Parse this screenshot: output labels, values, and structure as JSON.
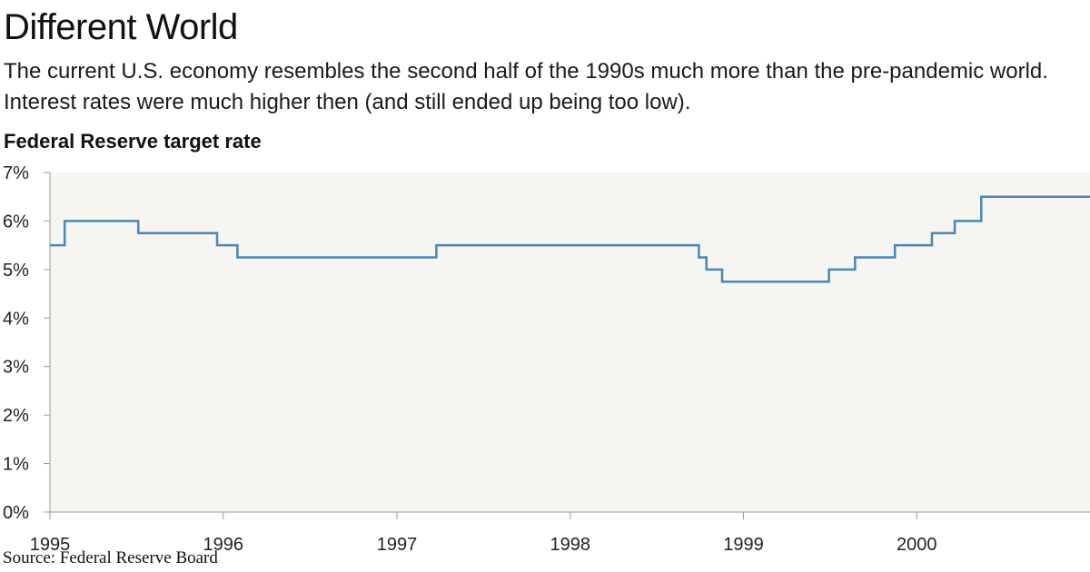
{
  "header": {
    "title": "Different World",
    "subtitle": "The current U.S. economy resembles the second half of the 1990s much more than the pre-pandemic world. Interest rates were much higher then (and still ended up being too low)."
  },
  "footer": {
    "source": "Source: Federal Reserve Board"
  },
  "colors": {
    "line": "#4a86b8",
    "plot_background": "#f6f5f1",
    "axis": "#9a9a9a"
  },
  "chart_data": {
    "type": "line",
    "step": true,
    "ylabel": "Federal Reserve target rate",
    "xlim": [
      "1995-01-01",
      "2000-12-31"
    ],
    "ylim": [
      0,
      7
    ],
    "x_ticks": [
      {
        "date": "1995-01-01",
        "label": "1995"
      },
      {
        "date": "1996-01-01",
        "label": "1996"
      },
      {
        "date": "1997-01-01",
        "label": "1997"
      },
      {
        "date": "1998-01-01",
        "label": "1998"
      },
      {
        "date": "1999-01-01",
        "label": "1999"
      },
      {
        "date": "2000-01-01",
        "label": "2000"
      }
    ],
    "y_ticks": [
      {
        "value": 0,
        "label": "0%"
      },
      {
        "value": 1,
        "label": "1%"
      },
      {
        "value": 2,
        "label": "2%"
      },
      {
        "value": 3,
        "label": "3%"
      },
      {
        "value": 4,
        "label": "4%"
      },
      {
        "value": 5,
        "label": "5%"
      },
      {
        "value": 6,
        "label": "6%"
      },
      {
        "value": 7,
        "label": "7%"
      }
    ],
    "series": [
      {
        "points": [
          {
            "date": "1995-01-01",
            "value": 5.5
          },
          {
            "date": "1995-02-01",
            "value": 6.0
          },
          {
            "date": "1995-07-06",
            "value": 5.75
          },
          {
            "date": "1995-12-19",
            "value": 5.5
          },
          {
            "date": "1996-01-31",
            "value": 5.25
          },
          {
            "date": "1997-03-25",
            "value": 5.5
          },
          {
            "date": "1998-09-29",
            "value": 5.25
          },
          {
            "date": "1998-10-15",
            "value": 5.0
          },
          {
            "date": "1998-11-17",
            "value": 4.75
          },
          {
            "date": "1999-06-30",
            "value": 5.0
          },
          {
            "date": "1999-08-24",
            "value": 5.25
          },
          {
            "date": "1999-11-16",
            "value": 5.5
          },
          {
            "date": "2000-02-02",
            "value": 5.75
          },
          {
            "date": "2000-03-21",
            "value": 6.0
          },
          {
            "date": "2000-05-16",
            "value": 6.5
          },
          {
            "date": "2000-12-31",
            "value": 6.5
          }
        ]
      }
    ]
  }
}
